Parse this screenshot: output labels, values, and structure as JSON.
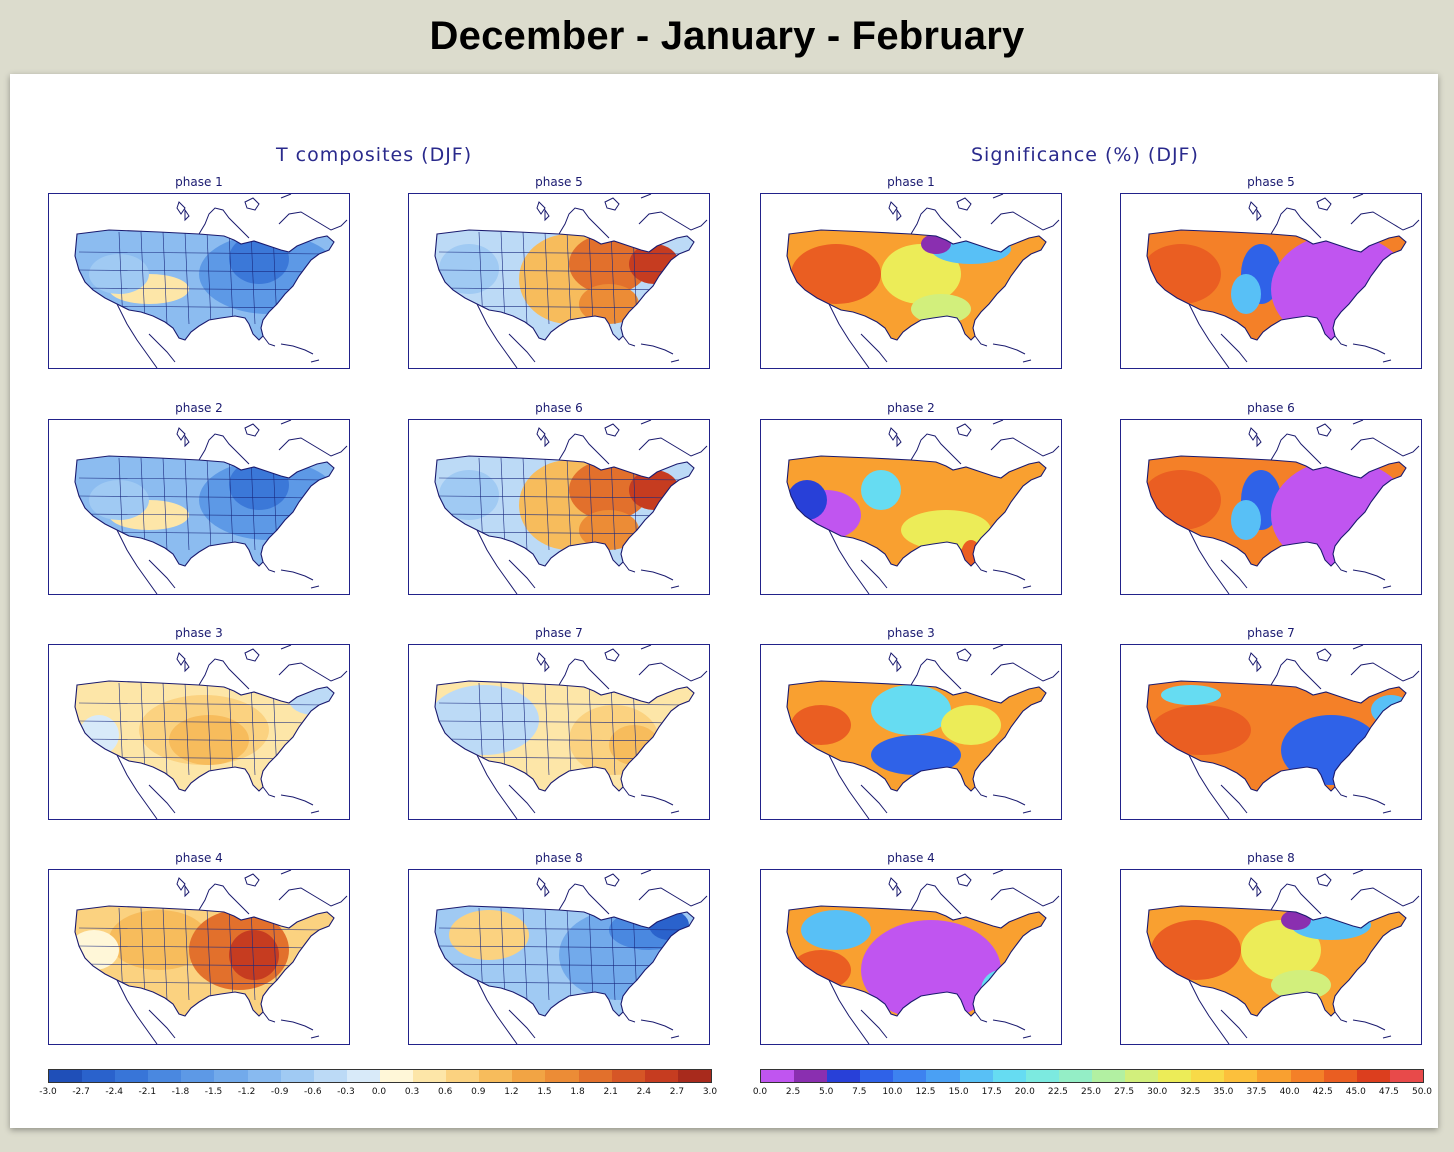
{
  "title": "December - January - February",
  "left_title": "T composites (DJF)",
  "right_title": "Significance (%) (DJF)",
  "phase_labels": [
    "phase 1",
    "phase 5",
    "phase 2",
    "phase 6",
    "phase 3",
    "phase 7",
    "phase 4",
    "phase 8"
  ],
  "left_maps": [
    {
      "phase": "phase 1",
      "palette": "blue-cool"
    },
    {
      "phase": "phase 5",
      "palette": "warm-east"
    },
    {
      "phase": "phase 2",
      "palette": "blue-cool"
    },
    {
      "phase": "phase 6",
      "palette": "warm-east"
    },
    {
      "phase": "phase 3",
      "palette": "light-warm"
    },
    {
      "phase": "phase 7",
      "palette": "light-mixed"
    },
    {
      "phase": "phase 4",
      "palette": "hot-east"
    },
    {
      "phase": "phase 8",
      "palette": "cool-east"
    }
  ],
  "right_maps": [
    {
      "phase": "phase 1",
      "palette": "sig-warm"
    },
    {
      "phase": "phase 5",
      "palette": "sig-purple-east"
    },
    {
      "phase": "phase 2",
      "palette": "sig-warm-purple-west"
    },
    {
      "phase": "phase 6",
      "palette": "sig-purple-east"
    },
    {
      "phase": "phase 3",
      "palette": "sig-mixed"
    },
    {
      "phase": "phase 7",
      "palette": "sig-blue-east"
    },
    {
      "phase": "phase 4",
      "palette": "sig-purple-center"
    },
    {
      "phase": "phase 8",
      "palette": "sig-warm"
    }
  ],
  "left_colorbar": {
    "ticks": [
      "-3.0",
      "-2.7",
      "-2.4",
      "-2.1",
      "-1.8",
      "-1.5",
      "-1.2",
      "-0.9",
      "-0.6",
      "-0.3",
      "0.0",
      "0.3",
      "0.6",
      "0.9",
      "1.2",
      "1.5",
      "1.8",
      "2.1",
      "2.4",
      "2.7",
      "3.0"
    ],
    "colors": [
      "#1f4fb8",
      "#2a62cc",
      "#3875d8",
      "#4a88e0",
      "#5d99e6",
      "#72aaeb",
      "#88baf0",
      "#a0caf3",
      "#bcdaf6",
      "#d8eaf9",
      "#fff7d8",
      "#fde6a8",
      "#fbd280",
      "#f7bc5c",
      "#f2a444",
      "#ec8c36",
      "#e2702c",
      "#d65626",
      "#c63c20",
      "#a82a1c"
    ]
  },
  "right_colorbar": {
    "ticks": [
      "0.0",
      "2.5",
      "5.0",
      "7.5",
      "10.0",
      "12.5",
      "15.0",
      "17.5",
      "20.0",
      "22.5",
      "25.0",
      "27.5",
      "30.0",
      "32.5",
      "35.0",
      "37.5",
      "40.0",
      "42.5",
      "45.0",
      "47.5",
      "50.0"
    ],
    "colors": [
      "#c055f0",
      "#8a2fb0",
      "#2840d8",
      "#2f62e8",
      "#3d82f0",
      "#4aa0f4",
      "#58c0f6",
      "#66dcf2",
      "#7ceae0",
      "#94eec6",
      "#b2f0a2",
      "#d2ef7c",
      "#ecec58",
      "#f8da48",
      "#fcc03c",
      "#f9a030",
      "#f48028",
      "#ea5e22",
      "#dc3e1e",
      "#e84a4a"
    ]
  }
}
